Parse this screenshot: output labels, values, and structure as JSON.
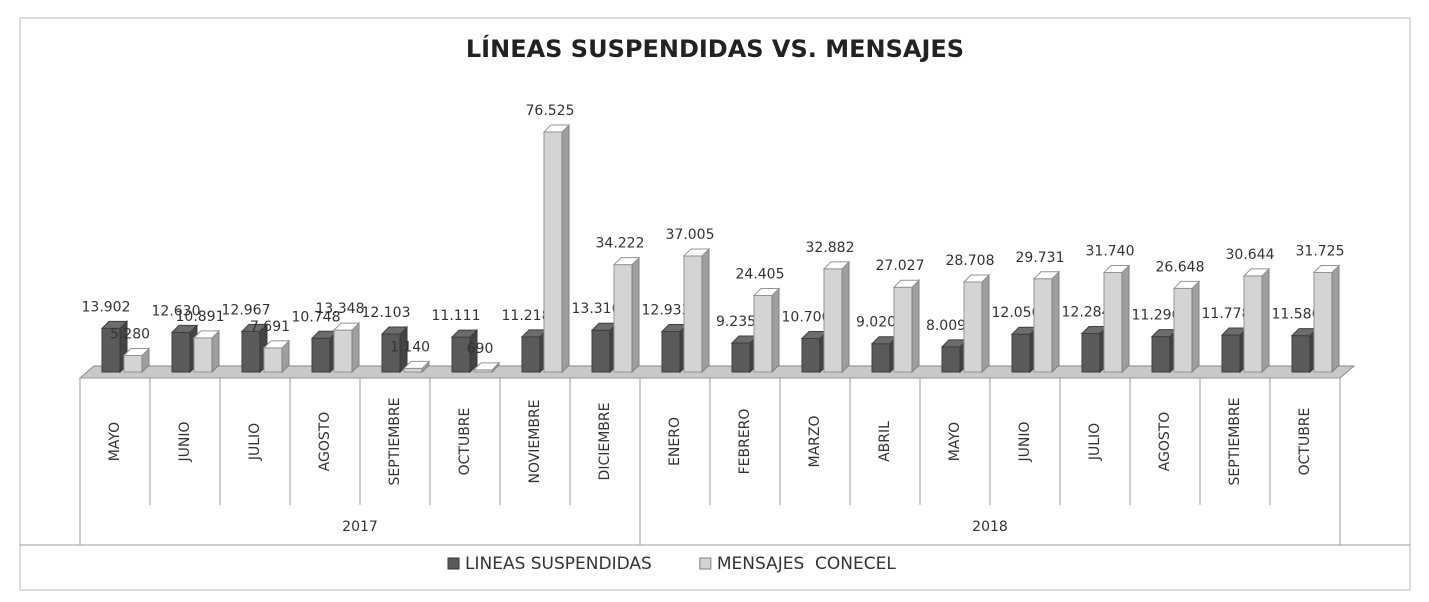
{
  "chart_data": {
    "type": "bar3d",
    "title": "LÍNEAS SUSPENDIDAS VS. MENSAJES",
    "groups": [
      {
        "label": "2017",
        "categories": [
          "MAYO",
          "JUNIO",
          "JULIO",
          "AGOSTO",
          "SEPTIEMBRE",
          "OCTUBRE",
          "NOVIEMBRE",
          "DICIEMBRE"
        ]
      },
      {
        "label": "2018",
        "categories": [
          "ENERO",
          "FEBRERO",
          "MARZO",
          "ABRIL",
          "MAYO",
          "JUNIO",
          "JULIO",
          "AGOSTO",
          "SEPTIEMBRE",
          "OCTUBRE"
        ]
      }
    ],
    "series": [
      {
        "name": "LINEAS SUSPENDIDAS",
        "color": "#5a5a5a",
        "values": [
          13902,
          12630,
          12967,
          10748,
          12103,
          11111,
          11218,
          13316,
          12933,
          9235,
          10700,
          9020,
          8009,
          12050,
          12284,
          11290,
          11778,
          11586
        ],
        "value_labels": [
          "13.902",
          "12.630",
          "12.967",
          "10.748",
          "12.103",
          "11.111",
          "11.218",
          "13.316",
          "12.933",
          "9.235",
          "10.700",
          "9.020",
          "8.009",
          "12.050",
          "12.284",
          "11.290",
          "11.778",
          "11.586"
        ]
      },
      {
        "name": "MENSAJES  CONECEL",
        "color": "#d4d4d4",
        "values": [
          5280,
          10891,
          7691,
          13348,
          1140,
          690,
          76525,
          34222,
          37005,
          24405,
          32882,
          27027,
          28708,
          29731,
          31740,
          26648,
          30644,
          31725
        ],
        "value_labels": [
          "5.280",
          "10.891",
          "7.691",
          "13.348",
          "1.140",
          "690",
          "76.525",
          "34.222",
          "37.005",
          "24.405",
          "32.882",
          "27.027",
          "28.708",
          "29.731",
          "31.740",
          "26.648",
          "30.644",
          "31.725"
        ]
      }
    ],
    "legend": "bottom"
  }
}
